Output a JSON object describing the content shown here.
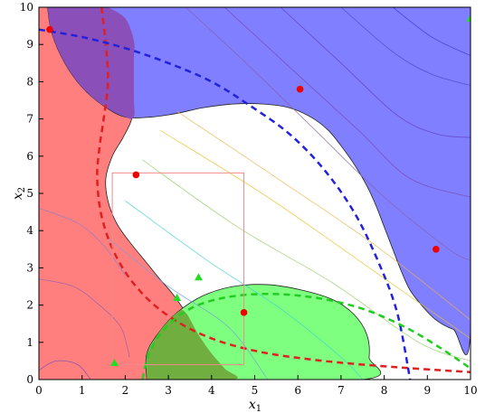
{
  "chart_data": {
    "type": "scatter",
    "title": "",
    "xlabel": "x",
    "xlabel_sub": "1",
    "ylabel": "x",
    "ylabel_sub": "2",
    "xlim": [
      0,
      10
    ],
    "ylim": [
      0,
      10
    ],
    "xticks": [
      "0",
      "1",
      "2",
      "3",
      "4",
      "5",
      "6",
      "7",
      "8",
      "9",
      "10"
    ],
    "yticks": [
      "0",
      "1",
      "2",
      "3",
      "4",
      "5",
      "6",
      "7",
      "8",
      "9",
      "10"
    ],
    "grid": false,
    "colors": {
      "red_region": "#ff7f7f",
      "blue_region": "#7f7fff",
      "green_region": "#7fff7f",
      "red_boundary": "#e02020",
      "blue_boundary": "#2222dd",
      "green_boundary": "#22cc22",
      "box": "#f08a8a",
      "red_points": "#ee0000",
      "green_points": "#22dd22"
    },
    "regions": [
      {
        "name": "red",
        "points": [
          [
            0.2,
            10
          ],
          [
            1.6,
            10
          ],
          [
            2.0,
            9.7
          ],
          [
            2.2,
            9.1
          ],
          [
            2.2,
            8.6
          ],
          [
            2.2,
            7.6
          ],
          [
            2.15,
            7.0
          ],
          [
            1.95,
            6.5
          ],
          [
            1.7,
            6.0
          ],
          [
            1.55,
            5.4
          ],
          [
            1.6,
            4.8
          ],
          [
            1.8,
            4.2
          ],
          [
            2.1,
            3.7
          ],
          [
            2.45,
            3.2
          ],
          [
            2.8,
            2.7
          ],
          [
            3.1,
            2.3
          ],
          [
            3.4,
            1.8
          ],
          [
            3.7,
            1.2
          ],
          [
            4.0,
            0.7
          ],
          [
            4.3,
            0.3
          ],
          [
            4.5,
            0
          ],
          [
            0,
            0
          ],
          [
            0,
            10
          ]
        ]
      },
      {
        "name": "blue",
        "points": [
          [
            0.2,
            10
          ],
          [
            10,
            10
          ],
          [
            10,
            1.3
          ],
          [
            9.6,
            1.35
          ],
          [
            9.2,
            1.6
          ],
          [
            8.9,
            1.95
          ],
          [
            8.6,
            2.4
          ],
          [
            8.4,
            2.9
          ],
          [
            8.2,
            3.5
          ],
          [
            8.0,
            4.1
          ],
          [
            7.8,
            4.7
          ],
          [
            7.6,
            5.2
          ],
          [
            7.35,
            5.7
          ],
          [
            7.05,
            6.2
          ],
          [
            6.7,
            6.7
          ],
          [
            6.3,
            7.05
          ],
          [
            5.8,
            7.3
          ],
          [
            5.2,
            7.4
          ],
          [
            4.5,
            7.4
          ],
          [
            3.8,
            7.3
          ],
          [
            3.2,
            7.15
          ],
          [
            2.6,
            7.05
          ],
          [
            2.0,
            7.05
          ],
          [
            1.5,
            7.35
          ],
          [
            1.0,
            7.85
          ],
          [
            0.6,
            8.5
          ],
          [
            0.3,
            9.3
          ],
          [
            0.2,
            10
          ]
        ]
      },
      {
        "name": "overlap_rb",
        "points": [
          [
            0.2,
            10
          ],
          [
            0.3,
            9.3
          ],
          [
            0.6,
            8.5
          ],
          [
            1.0,
            7.85
          ],
          [
            1.5,
            7.35
          ],
          [
            2.0,
            7.05
          ],
          [
            2.2,
            7.05
          ],
          [
            2.2,
            7.6
          ],
          [
            2.2,
            8.6
          ],
          [
            2.2,
            9.1
          ],
          [
            2.0,
            9.7
          ],
          [
            1.6,
            10
          ]
        ]
      },
      {
        "name": "green",
        "points": [
          [
            2.5,
            0
          ],
          [
            7.5,
            0
          ],
          [
            7.65,
            0.6
          ],
          [
            7.6,
            1.2
          ],
          [
            7.3,
            1.75
          ],
          [
            6.8,
            2.15
          ],
          [
            6.1,
            2.4
          ],
          [
            5.3,
            2.55
          ],
          [
            4.5,
            2.5
          ],
          [
            3.8,
            2.25
          ],
          [
            3.2,
            1.8
          ],
          [
            2.8,
            1.3
          ],
          [
            2.5,
            0.7
          ],
          [
            2.5,
            0
          ]
        ]
      },
      {
        "name": "overlap_rg",
        "points": [
          [
            2.5,
            0
          ],
          [
            4.5,
            0
          ],
          [
            4.3,
            0.3
          ],
          [
            4.0,
            0.7
          ],
          [
            3.7,
            1.2
          ],
          [
            3.4,
            1.8
          ],
          [
            3.2,
            1.8
          ],
          [
            2.8,
            1.3
          ],
          [
            2.5,
            0.7
          ]
        ]
      }
    ],
    "boundaries": [
      {
        "name": "red-dashed",
        "points": [
          [
            1.45,
            10
          ],
          [
            1.55,
            9.0
          ],
          [
            1.6,
            8.0
          ],
          [
            1.5,
            7.0
          ],
          [
            1.4,
            6.2
          ],
          [
            1.35,
            5.4
          ],
          [
            1.45,
            4.4
          ],
          [
            1.75,
            3.4
          ],
          [
            2.25,
            2.5
          ],
          [
            2.95,
            1.75
          ],
          [
            3.9,
            1.15
          ],
          [
            5.1,
            0.75
          ],
          [
            6.6,
            0.5
          ],
          [
            8.3,
            0.33
          ],
          [
            10,
            0.2
          ]
        ]
      },
      {
        "name": "blue-dashed",
        "points": [
          [
            0,
            9.4
          ],
          [
            1.0,
            9.2
          ],
          [
            2.0,
            8.9
          ],
          [
            3.0,
            8.5
          ],
          [
            4.0,
            8.0
          ],
          [
            4.9,
            7.35
          ],
          [
            5.8,
            6.6
          ],
          [
            6.6,
            5.65
          ],
          [
            7.3,
            4.5
          ],
          [
            7.85,
            3.2
          ],
          [
            8.3,
            1.8
          ],
          [
            8.6,
            0
          ]
        ]
      },
      {
        "name": "green-dashed",
        "points": [
          [
            2.4,
            0
          ],
          [
            2.55,
            0.7
          ],
          [
            2.9,
            1.35
          ],
          [
            3.5,
            1.9
          ],
          [
            4.3,
            2.2
          ],
          [
            5.3,
            2.3
          ],
          [
            6.4,
            2.2
          ],
          [
            7.5,
            1.9
          ],
          [
            8.5,
            1.4
          ],
          [
            9.3,
            0.85
          ],
          [
            10,
            0.3
          ]
        ]
      }
    ],
    "contours": [
      {
        "color": "#3a3ad0",
        "points": [
          [
            8.2,
            10
          ],
          [
            9.1,
            9.2
          ],
          [
            10,
            8.7
          ]
        ]
      },
      {
        "color": "#4a46c8",
        "points": [
          [
            7.0,
            10
          ],
          [
            8.2,
            8.8
          ],
          [
            9.1,
            8.2
          ],
          [
            10,
            7.9
          ]
        ]
      },
      {
        "color": "#6040b8",
        "points": [
          [
            5.6,
            10
          ],
          [
            7.0,
            8.5
          ],
          [
            8.3,
            7.1
          ],
          [
            9.2,
            6.6
          ],
          [
            10,
            6.5
          ]
        ]
      },
      {
        "color": "#7a48a8",
        "points": [
          [
            4.3,
            10
          ],
          [
            5.8,
            8.4
          ],
          [
            7.4,
            6.7
          ],
          [
            8.6,
            5.4
          ],
          [
            10,
            4.9
          ]
        ]
      },
      {
        "color": "#8a60a0",
        "points": [
          [
            3.4,
            10
          ],
          [
            4.8,
            8.5
          ],
          [
            6.4,
            6.7
          ],
          [
            8.0,
            4.9
          ],
          [
            9.5,
            3.5
          ],
          [
            10,
            3.2
          ]
        ]
      },
      {
        "color": "#f0b040",
        "points": [
          [
            3.2,
            7.2
          ],
          [
            5.4,
            5.5
          ],
          [
            7.8,
            3.6
          ],
          [
            10,
            1.6
          ]
        ]
      },
      {
        "color": "#e8c020",
        "points": [
          [
            2.8,
            6.7
          ],
          [
            5.3,
            4.9
          ],
          [
            7.9,
            2.8
          ],
          [
            10,
            1.1
          ]
        ]
      },
      {
        "color": "#90d060",
        "points": [
          [
            2.4,
            5.9
          ],
          [
            4.6,
            4.1
          ],
          [
            6.8,
            2.6
          ],
          [
            8.8,
            1.0
          ],
          [
            10,
            0.5
          ]
        ]
      },
      {
        "color": "#40d0d0",
        "points": [
          [
            2.0,
            4.8
          ],
          [
            3.9,
            3.2
          ],
          [
            5.6,
            1.9
          ],
          [
            7.0,
            0.6
          ],
          [
            7.5,
            0
          ]
        ]
      },
      {
        "color": "#70a0d8",
        "points": [
          [
            1.6,
            3.8
          ],
          [
            3.0,
            2.5
          ],
          [
            4.4,
            1.4
          ],
          [
            5.3,
            0
          ]
        ]
      },
      {
        "color": "#8a80c0",
        "points": [
          [
            0,
            4.6
          ],
          [
            0.9,
            4.2
          ],
          [
            1.5,
            3.6
          ],
          [
            2.0,
            2.8
          ]
        ]
      },
      {
        "color": "#8a60a8",
        "points": [
          [
            0,
            2.7
          ],
          [
            0.8,
            2.5
          ],
          [
            1.4,
            2.0
          ],
          [
            1.9,
            1.4
          ],
          [
            2.1,
            0.6
          ]
        ]
      },
      {
        "color": "#7050b0",
        "points": [
          [
            0,
            0.25
          ],
          [
            0.4,
            0.5
          ],
          [
            0.9,
            0.4
          ],
          [
            1.2,
            0
          ]
        ]
      }
    ],
    "box": {
      "x": [
        1.7,
        4.75
      ],
      "y": [
        0.4,
        5.55
      ]
    },
    "series": [
      {
        "marker": "circle",
        "color": "red",
        "x": [
          0.25,
          2.25,
          6.05,
          4.75,
          9.2
        ],
        "y": [
          9.4,
          5.5,
          7.8,
          1.8,
          3.5
        ]
      },
      {
        "marker": "triangle",
        "color": "green",
        "x": [
          10.0,
          3.7,
          3.2,
          1.75
        ],
        "y": [
          9.7,
          2.75,
          2.2,
          0.45
        ]
      }
    ]
  }
}
